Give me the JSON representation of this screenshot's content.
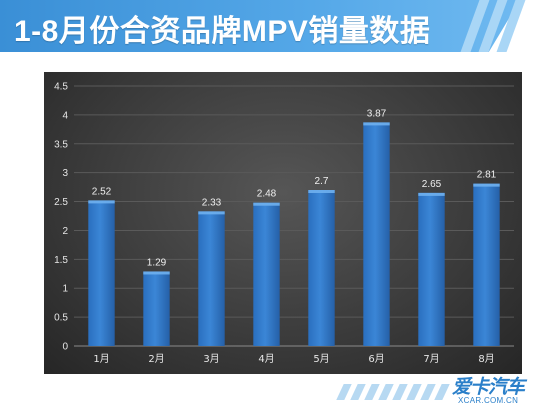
{
  "header": {
    "title": "1-8月份合资品牌MPV销量数据"
  },
  "colors": {
    "accent": "#3a8fd6",
    "bar": "#3b86d6",
    "plot_bg": "#3c3c3c"
  },
  "logo": {
    "main": "爱卡汽车",
    "sub": "XCAR.COM.CN"
  },
  "chart_data": {
    "type": "bar",
    "categories": [
      "1月",
      "2月",
      "3月",
      "4月",
      "5月",
      "6月",
      "7月",
      "8月"
    ],
    "values": [
      2.52,
      1.29,
      2.33,
      2.48,
      2.7,
      3.87,
      2.65,
      2.81
    ],
    "data_labels": [
      "2.52",
      "1.29",
      "2.33",
      "2.48",
      "2.7",
      "3.87",
      "2.65",
      "2.81"
    ],
    "yticks": [
      "0",
      "0.5",
      "1",
      "1.5",
      "2",
      "2.5",
      "3",
      "3.5",
      "4",
      "4.5"
    ],
    "ylim": [
      0,
      4.5
    ],
    "title": "",
    "xlabel": "",
    "ylabel": "",
    "grid": true
  }
}
